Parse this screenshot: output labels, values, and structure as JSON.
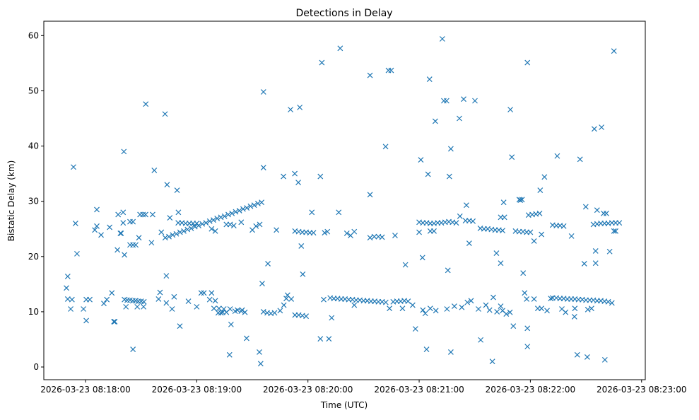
{
  "chart_data": {
    "type": "scatter",
    "title": "Detections in Delay",
    "xlabel": "Time (UTC)",
    "ylabel": "Bistatic Delay (km)",
    "x_unit": "seconds after 2026-03-23 08:18:00",
    "xlim": [
      -22.5,
      302
    ],
    "ylim": [
      -2.3,
      62.6
    ],
    "xticks": [
      0,
      60,
      120,
      180,
      240,
      300
    ],
    "xtick_labels": [
      "2026-03-23 08:18:00",
      "2026-03-23 08:19:00",
      "2026-03-23 08:20:00",
      "2026-03-23 08:21:00",
      "2026-03-23 08:22:00",
      "2026-03-23 08:23:00"
    ],
    "yticks": [
      0,
      10,
      20,
      30,
      40,
      50,
      60
    ],
    "ytick_labels": [
      "0",
      "10",
      "20",
      "30",
      "40",
      "50",
      "60"
    ],
    "grid": false,
    "marker": "x",
    "color": "#1f77b4",
    "points": [
      [
        -10.3,
        14.3
      ],
      [
        -9.6,
        16.4
      ],
      [
        -9.6,
        12.3
      ],
      [
        -8,
        10.5
      ],
      [
        -7.3,
        12.2
      ],
      [
        -6.5,
        36.2
      ],
      [
        -5.4,
        26
      ],
      [
        -4.6,
        20.5
      ],
      [
        -1.1,
        10.5
      ],
      [
        0.4,
        8.4
      ],
      [
        0.4,
        12.2
      ],
      [
        2.3,
        12.2
      ],
      [
        5,
        24.8
      ],
      [
        6.1,
        28.5
      ],
      [
        6.1,
        25.5
      ],
      [
        8.4,
        23.9
      ],
      [
        9.9,
        11.5
      ],
      [
        11.5,
        12.2
      ],
      [
        13,
        25.3
      ],
      [
        14.2,
        13.4
      ],
      [
        15.3,
        8.2
      ],
      [
        15.8,
        8.2
      ],
      [
        17.2,
        21.2
      ],
      [
        17.6,
        27.6
      ],
      [
        18.8,
        24.2
      ],
      [
        19.2,
        24.2
      ],
      [
        20.3,
        28
      ],
      [
        20.7,
        39
      ],
      [
        21,
        20.3
      ],
      [
        20.3,
        26.1
      ],
      [
        21,
        12.2
      ],
      [
        22.5,
        12.1
      ],
      [
        24,
        12.1
      ],
      [
        25.5,
        12.0
      ],
      [
        27,
        12.0
      ],
      [
        28.5,
        11.9
      ],
      [
        30,
        11.9
      ],
      [
        31.5,
        11.8
      ],
      [
        21.8,
        10.9
      ],
      [
        25.6,
        3.2
      ],
      [
        27.9,
        10.9
      ],
      [
        31.3,
        10.9
      ],
      [
        32.5,
        47.6
      ],
      [
        24,
        26.3
      ],
      [
        25.6,
        26.3
      ],
      [
        24,
        22.1
      ],
      [
        25.6,
        22.1
      ],
      [
        27.1,
        22.1
      ],
      [
        28.8,
        23.4
      ],
      [
        29.4,
        27.6
      ],
      [
        31,
        27.6
      ],
      [
        32.4,
        27.6
      ],
      [
        36.2,
        27.6
      ],
      [
        35.6,
        22.5
      ],
      [
        37.1,
        35.6
      ],
      [
        39.4,
        12.3
      ],
      [
        40.2,
        13.5
      ],
      [
        40.9,
        24.4
      ],
      [
        42.9,
        45.8
      ],
      [
        43.6,
        16.5
      ],
      [
        44,
        33
      ],
      [
        43.6,
        11.6
      ],
      [
        45.5,
        27
      ],
      [
        46.7,
        10.5
      ],
      [
        47.8,
        12.7
      ],
      [
        49.4,
        32
      ],
      [
        50.1,
        28
      ],
      [
        50.9,
        7.4
      ],
      [
        55.5,
        11.9
      ],
      [
        60,
        10.9
      ],
      [
        62.4,
        13.4
      ],
      [
        63.9,
        13.4
      ],
      [
        67,
        12.2
      ],
      [
        69.3,
        10.6
      ],
      [
        71.6,
        9.8
      ],
      [
        73.1,
        9.8
      ],
      [
        74.6,
        10.5
      ],
      [
        77.7,
        2.2
      ],
      [
        78.5,
        7.7
      ],
      [
        80.7,
        10.1
      ],
      [
        84.5,
        10.3
      ],
      [
        86,
        9.9
      ],
      [
        86.9,
        5.2
      ],
      [
        93.8,
        2.7
      ],
      [
        94.5,
        0.6
      ],
      [
        95.3,
        15.1
      ],
      [
        96,
        49.8
      ],
      [
        96,
        36.1
      ],
      [
        98.4,
        18.7
      ],
      [
        43,
        23.4
      ],
      [
        45,
        23.6
      ],
      [
        47,
        23.9
      ],
      [
        49,
        24.1
      ],
      [
        51,
        24.4
      ],
      [
        53,
        24.6
      ],
      [
        55,
        24.9
      ],
      [
        57,
        25.1
      ],
      [
        59,
        25.4
      ],
      [
        61,
        25.6
      ],
      [
        63,
        25.9
      ],
      [
        65,
        26.1
      ],
      [
        67,
        26.4
      ],
      [
        69,
        26.6
      ],
      [
        71,
        26.9
      ],
      [
        73,
        27.1
      ],
      [
        75,
        27.3
      ],
      [
        77,
        27.6
      ],
      [
        79,
        27.8
      ],
      [
        81,
        28.1
      ],
      [
        83,
        28.3
      ],
      [
        85,
        28.6
      ],
      [
        87,
        28.8
      ],
      [
        89,
        29.1
      ],
      [
        91,
        29.3
      ],
      [
        93,
        29.6
      ],
      [
        95,
        29.8
      ],
      [
        50,
        26.1
      ],
      [
        52,
        26.1
      ],
      [
        54,
        26
      ],
      [
        56,
        26
      ],
      [
        58,
        26
      ],
      [
        60,
        26
      ],
      [
        68,
        25
      ],
      [
        70,
        24.6
      ],
      [
        76,
        25.8
      ],
      [
        78,
        25.8
      ],
      [
        80,
        25.6
      ],
      [
        84,
        26.2
      ],
      [
        90,
        24.8
      ],
      [
        92,
        25.5
      ],
      [
        94,
        25.8
      ],
      [
        68,
        13.4
      ],
      [
        70,
        12
      ],
      [
        72,
        10.6
      ],
      [
        74,
        9.9
      ],
      [
        76,
        9.9
      ],
      [
        78,
        10.5
      ],
      [
        82,
        10.3
      ],
      [
        84,
        10.1
      ],
      [
        96,
        10
      ],
      [
        98,
        9.8
      ],
      [
        100,
        9.7
      ],
      [
        102,
        9.8
      ],
      [
        105,
        10.2
      ],
      [
        107,
        11.2
      ],
      [
        109,
        13
      ],
      [
        111,
        12.3
      ],
      [
        113,
        9.4
      ],
      [
        115,
        9.4
      ],
      [
        117,
        9.3
      ],
      [
        119,
        9.2
      ],
      [
        103,
        24.8
      ],
      [
        106.8,
        34.5
      ],
      [
        108.3,
        12.4
      ],
      [
        110.6,
        46.6
      ],
      [
        112.9,
        35
      ],
      [
        114.8,
        33.4
      ],
      [
        115.6,
        47
      ],
      [
        116.4,
        21.9
      ],
      [
        117.2,
        16.8
      ],
      [
        113,
        24.6
      ],
      [
        115,
        24.5
      ],
      [
        117,
        24.4
      ],
      [
        119,
        24.4
      ],
      [
        121,
        24.3
      ],
      [
        123,
        24.3
      ],
      [
        122.1,
        28
      ],
      [
        126.7,
        34.5
      ],
      [
        127.5,
        55.1
      ],
      [
        126.7,
        5.1
      ],
      [
        128.5,
        12.2
      ],
      [
        131.3,
        5.1
      ],
      [
        129,
        24.3
      ],
      [
        130.5,
        24.5
      ],
      [
        132.8,
        8.9
      ],
      [
        136.6,
        28
      ],
      [
        137.4,
        57.7
      ],
      [
        132,
        12.5
      ],
      [
        134,
        12.4
      ],
      [
        136,
        12.4
      ],
      [
        138,
        12.3
      ],
      [
        140,
        12.3
      ],
      [
        142,
        12.2
      ],
      [
        144,
        12.2
      ],
      [
        146,
        12.1
      ],
      [
        148,
        12.1
      ],
      [
        150,
        12
      ],
      [
        152,
        12
      ],
      [
        154,
        11.9
      ],
      [
        156,
        11.9
      ],
      [
        158,
        11.8
      ],
      [
        160,
        11.8
      ],
      [
        162,
        11.7
      ],
      [
        166,
        11.8
      ],
      [
        168,
        11.9
      ],
      [
        170,
        11.9
      ],
      [
        172,
        12.0
      ],
      [
        174,
        11.9
      ],
      [
        145,
        11.2
      ],
      [
        164,
        10.6
      ],
      [
        171,
        10.6
      ],
      [
        141,
        24.2
      ],
      [
        143,
        23.8
      ],
      [
        145,
        24.5
      ],
      [
        153.5,
        52.8
      ],
      [
        153.5,
        31.2
      ],
      [
        153.5,
        23.4
      ],
      [
        155.8,
        23.6
      ],
      [
        158,
        23.6
      ],
      [
        160,
        23.5
      ],
      [
        161.9,
        39.9
      ],
      [
        163.4,
        53.7
      ],
      [
        164.9,
        53.7
      ],
      [
        167,
        23.8
      ],
      [
        172.6,
        18.5
      ],
      [
        176.5,
        11.2
      ],
      [
        178,
        6.9
      ],
      [
        180.9,
        37.5
      ],
      [
        181.8,
        19.8
      ],
      [
        183.3,
        9.7
      ],
      [
        184,
        3.2
      ],
      [
        184.8,
        34.9
      ],
      [
        185.6,
        52.1
      ],
      [
        188.7,
        44.5
      ],
      [
        192.5,
        59.4
      ],
      [
        193.3,
        48.2
      ],
      [
        194.8,
        48.2
      ],
      [
        195.5,
        17.5
      ],
      [
        196.3,
        34.5
      ],
      [
        197.1,
        39.5
      ],
      [
        197.1,
        2.7
      ],
      [
        201.7,
        45
      ],
      [
        204,
        48.5
      ],
      [
        205.5,
        29.3
      ],
      [
        207,
        22.4
      ],
      [
        210.1,
        48.2
      ],
      [
        213.2,
        4.9
      ],
      [
        219.5,
        1
      ],
      [
        221.7,
        20.6
      ],
      [
        224,
        18.8
      ],
      [
        225.6,
        29.8
      ],
      [
        229.2,
        46.6
      ],
      [
        230,
        38
      ],
      [
        230.8,
        7.4
      ],
      [
        234.6,
        30.2
      ],
      [
        236.1,
        17
      ],
      [
        236.9,
        13.4
      ],
      [
        238.4,
        55.1
      ],
      [
        238.4,
        7
      ],
      [
        238.4,
        3.7
      ],
      [
        245.3,
        32
      ],
      [
        247.6,
        34.4
      ],
      [
        180,
        26.2
      ],
      [
        182,
        26.1
      ],
      [
        184,
        26.1
      ],
      [
        186,
        26
      ],
      [
        188,
        26
      ],
      [
        190,
        26.1
      ],
      [
        192,
        26.1
      ],
      [
        194,
        26.2
      ],
      [
        196,
        26.3
      ],
      [
        198,
        26.2
      ],
      [
        200,
        26.1
      ],
      [
        202,
        27.3
      ],
      [
        205,
        26.5
      ],
      [
        207,
        26.5
      ],
      [
        209,
        26.4
      ],
      [
        186,
        24.6
      ],
      [
        188,
        24.6
      ],
      [
        180,
        24.4
      ],
      [
        213,
        25.1
      ],
      [
        215,
        25
      ],
      [
        217,
        25
      ],
      [
        219,
        24.9
      ],
      [
        221,
        24.8
      ],
      [
        223,
        24.8
      ],
      [
        225,
        24.7
      ],
      [
        224,
        27.1
      ],
      [
        226,
        27.1
      ],
      [
        234,
        30.3
      ],
      [
        235.5,
        30.3
      ],
      [
        182,
        10.3
      ],
      [
        186,
        10.6
      ],
      [
        189,
        10.2
      ],
      [
        195,
        10.5
      ],
      [
        199,
        11
      ],
      [
        203,
        10.8
      ],
      [
        206,
        11.7
      ],
      [
        208,
        12
      ],
      [
        212,
        10.5
      ],
      [
        216,
        11.2
      ],
      [
        218,
        10.3
      ],
      [
        220,
        12.6
      ],
      [
        222,
        10
      ],
      [
        225,
        10.2
      ],
      [
        227,
        9.6
      ],
      [
        229,
        9.9
      ],
      [
        224,
        11
      ],
      [
        232,
        24.6
      ],
      [
        234,
        24.5
      ],
      [
        236,
        24.5
      ],
      [
        238,
        24.4
      ],
      [
        240,
        24.4
      ],
      [
        239,
        27.5
      ],
      [
        241,
        27.6
      ],
      [
        243,
        27.7
      ],
      [
        245,
        27.8
      ],
      [
        242,
        22.8
      ],
      [
        238,
        12.3
      ],
      [
        242,
        12.3
      ],
      [
        244,
        10.6
      ],
      [
        246,
        10.6
      ],
      [
        249,
        10.2
      ],
      [
        251,
        12.4
      ],
      [
        246,
        24
      ],
      [
        252,
        25.7
      ],
      [
        254,
        25.6
      ],
      [
        256,
        25.6
      ],
      [
        258,
        25.5
      ],
      [
        254.5,
        38.2
      ],
      [
        252,
        12.5
      ],
      [
        254,
        12.5
      ],
      [
        256,
        12.4
      ],
      [
        258,
        12.4
      ],
      [
        260,
        12.3
      ],
      [
        262,
        12.3
      ],
      [
        264,
        12.3
      ],
      [
        266,
        12.2
      ],
      [
        268,
        12.2
      ],
      [
        270,
        12.1
      ],
      [
        272,
        12.1
      ],
      [
        274,
        12.1
      ],
      [
        276,
        12
      ],
      [
        278,
        12
      ],
      [
        280,
        11.9
      ],
      [
        282,
        11.8
      ],
      [
        284,
        11.6
      ],
      [
        257,
        10.5
      ],
      [
        259,
        9.9
      ],
      [
        264,
        10.6
      ],
      [
        271,
        10.4
      ],
      [
        273,
        10.6
      ],
      [
        262.2,
        23.7
      ],
      [
        263.8,
        9.1
      ],
      [
        265.3,
        2.2
      ],
      [
        266.8,
        37.6
      ],
      [
        269.1,
        18.7
      ],
      [
        269.9,
        29
      ],
      [
        270.7,
        1.8
      ],
      [
        274.5,
        43.1
      ],
      [
        275.2,
        21
      ],
      [
        275.2,
        18.8
      ],
      [
        276,
        28.4
      ],
      [
        278.4,
        43.4
      ],
      [
        279.5,
        27.8
      ],
      [
        281,
        27.8
      ],
      [
        280.2,
        1.3
      ],
      [
        282.8,
        20.9
      ],
      [
        285.1,
        57.2
      ],
      [
        285.1,
        24.6
      ],
      [
        286,
        24.6
      ],
      [
        274,
        25.8
      ],
      [
        276,
        25.9
      ],
      [
        278,
        26
      ],
      [
        280,
        26
      ],
      [
        282,
        26
      ],
      [
        284,
        26.1
      ],
      [
        286,
        26.1
      ],
      [
        288,
        26.1
      ]
    ]
  }
}
